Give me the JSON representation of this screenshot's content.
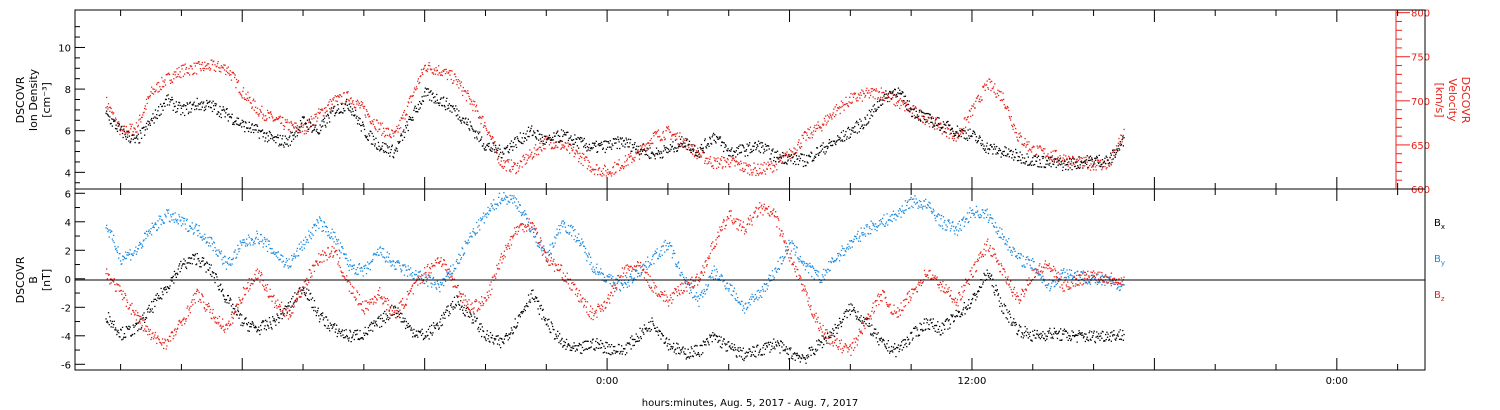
{
  "page": {
    "colors": {
      "black": "#000000",
      "red": "#e8231c",
      "blue": "#1a8ae0"
    }
  },
  "chart_data": [
    {
      "type": "scatter",
      "panel": "top",
      "ylabel_left": [
        "DSCOVR",
        "Ion Density",
        "[cm⁻³]"
      ],
      "ylabel_right": [
        "DSCOVR",
        "Velocity",
        "[km/s]"
      ],
      "ylim_left": [
        3.2,
        11.8
      ],
      "ylim_right": [
        600,
        803
      ],
      "yticks_left": [
        "4",
        "6",
        "8",
        "10"
      ],
      "yticks_right": [
        "600",
        "650",
        "700",
        "750",
        "800"
      ],
      "series": [
        {
          "color": "black",
          "axis": "left",
          "x": [
            -16.5,
            -16,
            -15.5,
            -15,
            -14.5,
            -14,
            -13.5,
            -13,
            -12.5,
            -12,
            -11.5,
            -11,
            -10.5,
            -10,
            -9.5,
            -9,
            -8.5,
            -8,
            -7.5,
            -7,
            -6.5,
            -6,
            -5.5,
            -5,
            -4.5,
            -4,
            -3.5,
            -3,
            -2.5,
            -2,
            -1.5,
            -1,
            -0.5,
            0,
            0.5,
            1,
            1.5,
            2,
            2.5,
            3,
            3.5,
            4,
            4.5,
            5,
            5.5,
            6,
            6.5,
            7,
            7.5,
            8,
            8.5,
            9,
            9.5,
            10,
            10.5,
            11,
            11.5,
            12,
            12.5,
            13,
            13.5,
            14,
            14.5,
            15,
            15.5,
            16,
            16.5,
            17
          ],
          "values": [
            6.8,
            6.0,
            5.5,
            6.5,
            7.5,
            7.0,
            7.3,
            7.2,
            6.8,
            6.3,
            6.0,
            5.6,
            5.5,
            6.5,
            6.0,
            7.0,
            7.3,
            6.0,
            5.3,
            5.0,
            6.5,
            7.8,
            7.5,
            7.0,
            6.2,
            5.3,
            5.0,
            5.5,
            6.0,
            5.5,
            5.8,
            5.5,
            5.2,
            5.3,
            5.5,
            5.2,
            4.9,
            5.1,
            5.5,
            5.0,
            5.8,
            5.0,
            5.1,
            5.3,
            4.8,
            4.7,
            4.6,
            5.1,
            5.5,
            6.0,
            6.5,
            7.5,
            8.0,
            7.0,
            6.6,
            6.3,
            6.0,
            5.8,
            5.2,
            5.0,
            4.8,
            4.6,
            4.5,
            4.4,
            4.5,
            4.6,
            4.6,
            5.6
          ]
        },
        {
          "color": "red",
          "axis": "right",
          "x": [
            -16.5,
            -16,
            -15.5,
            -15,
            -14.5,
            -14,
            -13.5,
            -13,
            -12.5,
            -12,
            -11.5,
            -11,
            -10.5,
            -10,
            -9.5,
            -9,
            -8.5,
            -8,
            -7.5,
            -7,
            -6.5,
            -6,
            -5.5,
            -5,
            -4.5,
            -4,
            -3.5,
            -3,
            -2.5,
            -2,
            -1.5,
            -1,
            -0.5,
            0,
            0.5,
            1,
            1.5,
            2,
            2.5,
            3,
            3.5,
            4,
            4.5,
            5,
            5.5,
            6,
            6.5,
            7,
            7.5,
            8,
            8.5,
            9,
            9.5,
            10,
            10.5,
            11,
            11.5,
            12,
            12.5,
            13,
            13.5,
            14,
            14.5,
            15,
            15.5,
            16,
            16.5,
            17
          ],
          "values": [
            700,
            665,
            670,
            710,
            725,
            735,
            738,
            740,
            737,
            710,
            690,
            680,
            672,
            668,
            685,
            700,
            705,
            690,
            670,
            660,
            700,
            740,
            735,
            725,
            700,
            672,
            630,
            625,
            640,
            655,
            650,
            640,
            625,
            620,
            630,
            640,
            660,
            665,
            655,
            640,
            630,
            632,
            625,
            622,
            628,
            640,
            660,
            672,
            690,
            702,
            708,
            710,
            700,
            690,
            680,
            670,
            660,
            690,
            720,
            705,
            660,
            645,
            640,
            635,
            630,
            629,
            628,
            665
          ]
        }
      ]
    },
    {
      "type": "scatter",
      "panel": "bottom",
      "ylabel_left": [
        "DSCOVR",
        "B",
        "[nT]"
      ],
      "ylim": [
        -6.4,
        6.3
      ],
      "yticks": [
        "-6",
        "-4",
        "-2",
        "0",
        "2",
        "4",
        "6"
      ],
      "legend": [
        "Bx",
        "By",
        "Bz"
      ],
      "series": [
        {
          "name": "Bx",
          "color": "black",
          "x": [
            -16.5,
            -16,
            -15.5,
            -15,
            -14.5,
            -14,
            -13.5,
            -13,
            -12.5,
            -12,
            -11.5,
            -11,
            -10.5,
            -10,
            -9.5,
            -9,
            -8.5,
            -8,
            -7.5,
            -7,
            -6.5,
            -6,
            -5.5,
            -5,
            -4.5,
            -4,
            -3.5,
            -3,
            -2.5,
            -2,
            -1.5,
            -1,
            -0.5,
            0,
            0.5,
            1,
            1.5,
            2,
            2.5,
            3,
            3.5,
            4,
            4.5,
            5,
            5.5,
            6,
            6.5,
            7,
            7.5,
            8,
            8.5,
            9,
            9.5,
            10,
            10.5,
            11,
            11.5,
            12,
            12.5,
            13,
            13.5,
            14,
            14.5,
            15,
            15.5,
            16,
            16.5,
            17
          ],
          "values": [
            -2.5,
            -3.8,
            -3.5,
            -2.0,
            -0.5,
            1.0,
            1.5,
            0.5,
            -1.5,
            -3.0,
            -3.5,
            -3.0,
            -2.0,
            -0.5,
            -2.5,
            -3.5,
            -4.0,
            -3.8,
            -3.0,
            -2.0,
            -3.5,
            -4.0,
            -3.0,
            -1.5,
            -2.5,
            -4.0,
            -4.5,
            -3.0,
            -1.0,
            -3.0,
            -4.5,
            -5.0,
            -4.5,
            -4.8,
            -5.0,
            -4.0,
            -3.0,
            -4.5,
            -5.2,
            -5.0,
            -4.0,
            -4.8,
            -5.3,
            -5.0,
            -4.5,
            -5.2,
            -5.5,
            -4.5,
            -3.5,
            -2.0,
            -3.0,
            -4.5,
            -5.0,
            -4.0,
            -3.0,
            -3.5,
            -2.5,
            -1.5,
            0.5,
            -2.0,
            -3.5,
            -4.0,
            -3.8,
            -3.9,
            -4.0,
            -4.0,
            -3.9,
            -3.9
          ]
        },
        {
          "name": "By",
          "color": "blue",
          "x": [
            -16.5,
            -16,
            -15.5,
            -15,
            -14.5,
            -14,
            -13.5,
            -13,
            -12.5,
            -12,
            -11.5,
            -11,
            -10.5,
            -10,
            -9.5,
            -9,
            -8.5,
            -8,
            -7.5,
            -7,
            -6.5,
            -6,
            -5.5,
            -5,
            -4.5,
            -4,
            -3.5,
            -3,
            -2.5,
            -2,
            -1.5,
            -1,
            -0.5,
            0,
            0.5,
            1,
            1.5,
            2,
            2.5,
            3,
            3.5,
            4,
            4.5,
            5,
            5.5,
            6,
            6.5,
            7,
            7.5,
            8,
            8.5,
            9,
            9.5,
            10,
            10.5,
            11,
            11.5,
            12,
            12.5,
            13,
            13.5,
            14,
            14.5,
            15,
            15.5,
            16,
            16.5,
            17
          ],
          "values": [
            3.8,
            1.5,
            2.0,
            3.5,
            4.5,
            4.0,
            3.5,
            2.5,
            1.0,
            2.5,
            3.0,
            2.0,
            1.0,
            2.5,
            4.0,
            3.0,
            1.0,
            0.5,
            2.0,
            1.0,
            0.5,
            0.0,
            -0.5,
            1.0,
            3.0,
            4.5,
            5.8,
            5.5,
            3.5,
            1.5,
            4.0,
            3.0,
            1.0,
            0.0,
            -0.5,
            0.5,
            1.5,
            2.5,
            0.0,
            -1.5,
            0.5,
            -0.5,
            -2.0,
            -1.0,
            0.5,
            2.5,
            1.0,
            0.0,
            1.5,
            2.5,
            3.5,
            4.0,
            4.5,
            5.5,
            5.2,
            4.0,
            3.5,
            4.8,
            4.5,
            3.0,
            1.5,
            1.0,
            -0.5,
            0.5,
            0.3,
            0.0,
            -0.2,
            -0.4
          ]
        },
        {
          "name": "Bz",
          "color": "red",
          "x": [
            -16.5,
            -16,
            -15.5,
            -15,
            -14.5,
            -14,
            -13.5,
            -13,
            -12.5,
            -12,
            -11.5,
            -11,
            -10.5,
            -10,
            -9.5,
            -9,
            -8.5,
            -8,
            -7.5,
            -7,
            -6.5,
            -6,
            -5.5,
            -5,
            -4.5,
            -4,
            -3.5,
            -3,
            -2.5,
            -2,
            -1.5,
            -1,
            -0.5,
            0,
            0.5,
            1,
            1.5,
            2,
            2.5,
            3,
            3.5,
            4,
            4.5,
            5,
            5.5,
            6,
            6.5,
            7,
            7.5,
            8,
            8.5,
            9,
            9.5,
            10,
            10.5,
            11,
            11.5,
            12,
            12.5,
            13,
            13.5,
            14,
            14.5,
            15,
            15.5,
            16,
            16.5,
            17
          ],
          "values": [
            0.5,
            -1.0,
            -2.5,
            -4.0,
            -4.5,
            -3.0,
            -1.0,
            -2.5,
            -3.5,
            -1.0,
            0.5,
            -1.5,
            -2.5,
            -0.5,
            1.5,
            2.0,
            -0.5,
            -2.0,
            -1.0,
            -2.5,
            -1.0,
            0.5,
            1.5,
            -0.5,
            -2.0,
            -1.5,
            1.5,
            3.5,
            4.0,
            1.5,
            0.5,
            -1.0,
            -2.5,
            -1.5,
            0.5,
            1.0,
            -0.5,
            -1.5,
            -0.5,
            0.0,
            2.5,
            4.5,
            3.5,
            5.0,
            4.5,
            1.5,
            -1.0,
            -3.5,
            -4.5,
            -5.0,
            -3.0,
            -1.0,
            -2.5,
            -1.0,
            0.5,
            -0.5,
            -1.5,
            0.5,
            2.5,
            0.5,
            -1.5,
            0.5,
            1.0,
            -0.5,
            0.0,
            0.3,
            0.1,
            -0.1
          ]
        }
      ],
      "xlabel": "hours:minutes, Aug.  5, 2017 - Aug.  7, 2017",
      "xlim": [
        -17.5,
        26.9
      ],
      "xticks": [
        {
          "x": 0,
          "label": "0:00"
        },
        {
          "x": 12,
          "label": "12:00"
        },
        {
          "x": 24,
          "label": "0:00"
        }
      ]
    }
  ]
}
